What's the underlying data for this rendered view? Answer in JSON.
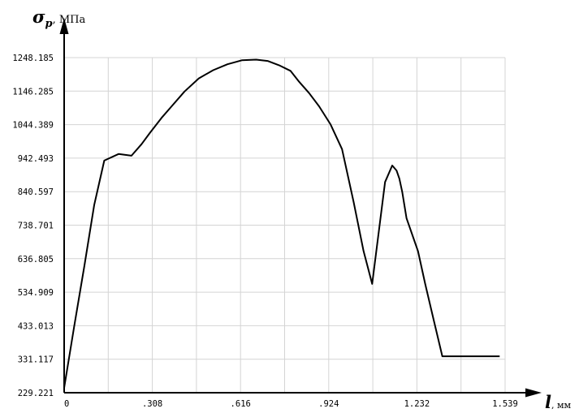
{
  "chart_data": {
    "type": "line",
    "y_axis": {
      "symbol": "σ",
      "subscript": "p",
      "unit": ", МПа"
    },
    "x_axis": {
      "symbol": "l",
      "unit": ", мм"
    },
    "yticks": [
      "229.221",
      "331.117",
      "433.013",
      "534.909",
      "636.805",
      "738.701",
      "840.597",
      "942.493",
      "1044.389",
      "1146.285",
      "1248.185"
    ],
    "xticks": [
      "0",
      ".308",
      ".616",
      ".924",
      "1.232",
      "1.539"
    ],
    "xlim": [
      0,
      1.539
    ],
    "ylim": [
      229.221,
      1248.185
    ],
    "grid": true,
    "series": [
      {
        "x": [
          0,
          0.035,
          0.07,
          0.105,
          0.14,
          0.19,
          0.235,
          0.27,
          0.3,
          0.34,
          0.38,
          0.42,
          0.47,
          0.52,
          0.57,
          0.62,
          0.67,
          0.71,
          0.75,
          0.79,
          0.82,
          0.855,
          0.89,
          0.93,
          0.97,
          1.01,
          1.045,
          1.075,
          1.12,
          1.145,
          1.16,
          1.17,
          1.18,
          1.195,
          1.235,
          1.26,
          1.29,
          1.32,
          1.35,
          1.38,
          1.41,
          1.44,
          1.47,
          1.5,
          1.52
        ],
        "y": [
          244,
          430,
          612,
          800,
          935,
          955,
          950,
          985,
          1020,
          1065,
          1105,
          1145,
          1185,
          1210,
          1228,
          1240,
          1242,
          1238,
          1225,
          1208,
          1175,
          1140,
          1100,
          1045,
          970,
          810,
          660,
          560,
          870,
          920,
          905,
          880,
          840,
          760,
          660,
          560,
          450,
          340,
          340,
          340,
          340,
          340,
          340,
          340,
          340
        ]
      }
    ]
  }
}
